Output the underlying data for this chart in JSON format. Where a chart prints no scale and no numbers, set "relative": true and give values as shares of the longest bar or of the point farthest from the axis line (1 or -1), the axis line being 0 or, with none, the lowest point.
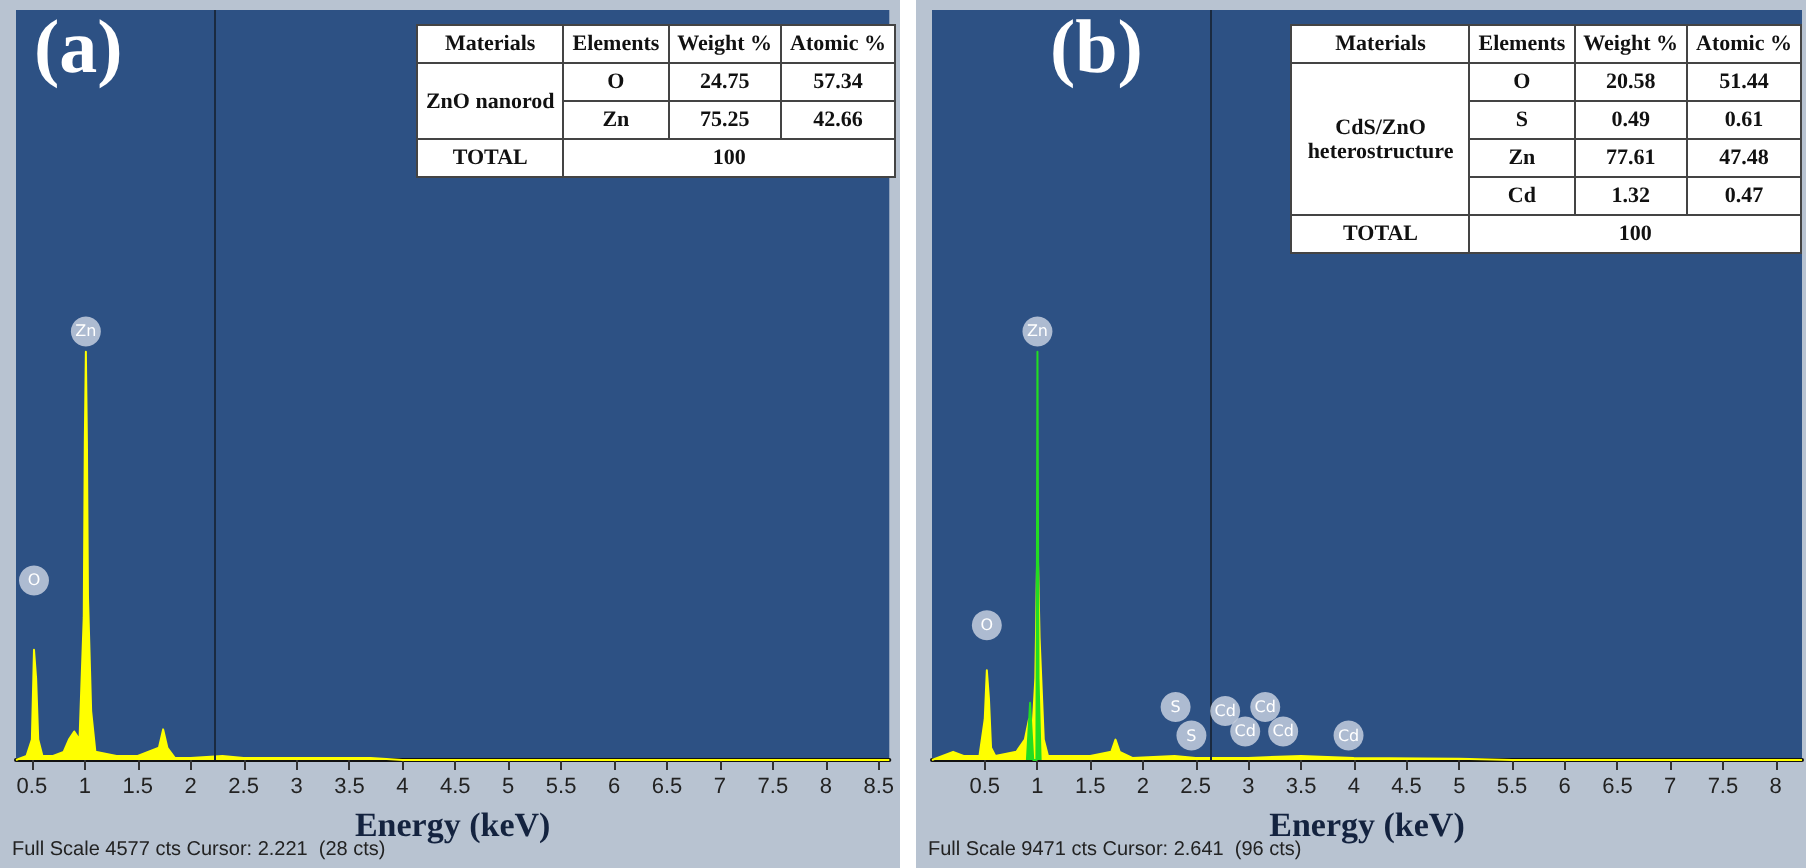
{
  "chart_data": [
    {
      "type": "area",
      "title": "(a)",
      "xlabel": "Energy (keV)",
      "relative": true,
      "xlim": [
        0.35,
        8.6
      ],
      "xticks": [
        0.5,
        1,
        1.5,
        2,
        2.5,
        3,
        3.5,
        4,
        4.5,
        5,
        5.5,
        6,
        6.5,
        7,
        7.5,
        8,
        8.5
      ],
      "series": [
        {
          "color": "#ffff00",
          "x": [
            0.35,
            0.45,
            0.5,
            0.52,
            0.54,
            0.56,
            0.6,
            0.7,
            0.8,
            0.85,
            0.9,
            0.95,
            0.99,
            1.0,
            1.01,
            1.02,
            1.03,
            1.06,
            1.1,
            1.3,
            1.5,
            1.7,
            1.74,
            1.78,
            1.85,
            2.0,
            2.3,
            2.5,
            3.0,
            3.7,
            4.0,
            8.6
          ],
          "values": [
            0,
            0.01,
            0.05,
            0.27,
            0.2,
            0.05,
            0.01,
            0.01,
            0.02,
            0.05,
            0.07,
            0.05,
            0.35,
            0.78,
            1,
            0.78,
            0.4,
            0.12,
            0.02,
            0.01,
            0.01,
            0.03,
            0.075,
            0.03,
            0.005,
            0.005,
            0.01,
            0.005,
            0.005,
            0.005,
            0,
            0
          ]
        }
      ],
      "ref_lines": [
        {
          "axis": "x",
          "value": 2.221,
          "color": "#1a2a40"
        }
      ],
      "annotations": [
        {
          "text": "O",
          "x": 0.52,
          "y": 0.44
        },
        {
          "text": "Zn",
          "x": 1.01,
          "y": 1.05
        },
        "Full Scale 4577 cts Cursor: 2.221  (28 cts)"
      ]
    },
    {
      "type": "other",
      "categories": [
        "Materials",
        "Elements",
        "Weight %",
        "Atomic %"
      ],
      "cell_labels": [
        [
          "ZnO nanorod",
          "O",
          "24.75",
          "57.34"
        ],
        [
          null,
          "Zn",
          "75.25",
          "42.66"
        ],
        [
          "TOTAL",
          "100",
          null,
          null
        ]
      ]
    },
    {
      "type": "area",
      "title": "(b)",
      "xlabel": "Energy (keV)",
      "relative": true,
      "xlim": [
        0,
        8.25
      ],
      "xticks": [
        0.5,
        1,
        1.5,
        2,
        2.5,
        3,
        3.5,
        4,
        4.5,
        5,
        5.5,
        6,
        6.5,
        7,
        7.5,
        8
      ],
      "series": [
        {
          "color": "#ffff00",
          "x": [
            0,
            0.1,
            0.2,
            0.3,
            0.45,
            0.5,
            0.52,
            0.54,
            0.56,
            0.6,
            0.8,
            0.88,
            0.92,
            0.95,
            0.98,
            1.0,
            1.02,
            1.06,
            1.1,
            1.5,
            1.7,
            1.74,
            1.78,
            1.9,
            2.3,
            2.5,
            3.0,
            3.5,
            4.0,
            5.0,
            5.5,
            8.25
          ],
          "values": [
            0,
            0.01,
            0.02,
            0.01,
            0.01,
            0.1,
            0.22,
            0.15,
            0.03,
            0.01,
            0.02,
            0.05,
            0.1,
            0.06,
            0.2,
            0.55,
            0.3,
            0.05,
            0.01,
            0.01,
            0.02,
            0.05,
            0.02,
            0.005,
            0.01,
            0.005,
            0.005,
            0.01,
            0.005,
            0.003,
            0,
            0
          ]
        },
        {
          "color": "#22dd22",
          "x": [
            0.9,
            0.93,
            0.96,
            0.99,
            1.0,
            1.01,
            1.03
          ],
          "values": [
            0,
            0.14,
            0,
            0,
            1,
            0.2,
            0
          ]
        }
      ],
      "ref_lines": [
        {
          "axis": "x",
          "value": 2.641,
          "color": "#1a2a40"
        }
      ],
      "annotations": [
        {
          "text": "O",
          "x": 0.52,
          "y": 0.33
        },
        {
          "text": "Zn",
          "x": 1.0,
          "y": 1.05
        },
        {
          "text": "S",
          "x": 2.31,
          "y": 0.13
        },
        {
          "text": "S",
          "x": 2.46,
          "y": 0.06
        },
        {
          "text": "Cd",
          "x": 2.78,
          "y": 0.12
        },
        {
          "text": "Cd",
          "x": 2.97,
          "y": 0.07
        },
        {
          "text": "Cd",
          "x": 3.16,
          "y": 0.13
        },
        {
          "text": "Cd",
          "x": 3.33,
          "y": 0.07
        },
        {
          "text": "Cd",
          "x": 3.95,
          "y": 0.06
        },
        "Full Scale 9471 cts Cursor: 2.641  (96 cts)"
      ]
    },
    {
      "type": "other",
      "categories": [
        "Materials",
        "Elements",
        "Weight %",
        "Atomic %"
      ],
      "cell_labels": [
        [
          "CdS/ZnO heterostructure",
          "O",
          "20.58",
          "51.44"
        ],
        [
          null,
          "S",
          "0.49",
          "0.61"
        ],
        [
          null,
          "Zn",
          "77.61",
          "47.48"
        ],
        [
          null,
          "Cd",
          "1.32",
          "0.47"
        ],
        [
          "TOTAL",
          "100",
          null,
          null
        ]
      ]
    }
  ]
}
